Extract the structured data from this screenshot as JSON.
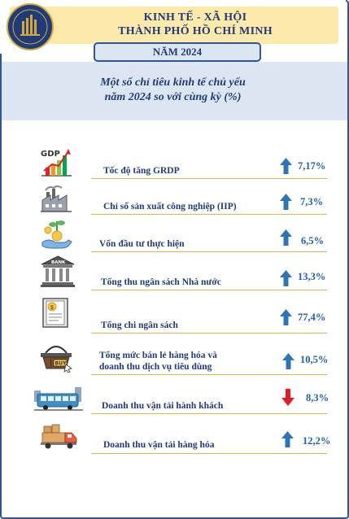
{
  "header": {
    "title_line1": "KINH TẾ - XÃ HỘI",
    "title_line2": "THÀNH PHỐ HỒ CHÍ MINH",
    "year_label": "NĂM 2024"
  },
  "subtitle": {
    "line1": "Một số chỉ tiêu kinh tế chủ yếu",
    "line2": "năm 2024 so với cùng kỳ (%)"
  },
  "icon_text": {
    "gdp": "GDP",
    "bank": "BANK",
    "buy": "BUY"
  },
  "colors": {
    "up_arrow": "#2e75b6",
    "down_arrow": "#e31e24",
    "text": "#1f3b7a",
    "value": "#1f5fb4"
  },
  "indicators": [
    {
      "label_line1": "Tốc độ tăng GRDP",
      "label_line2": "",
      "value": "7,17%",
      "direction": "up",
      "icon": "gdp-chart-icon"
    },
    {
      "label_line1": "Chỉ số sản xuất công nghiệp (IIP)",
      "label_line2": "",
      "value": "7,3%",
      "direction": "up",
      "icon": "factory-icon"
    },
    {
      "label_line1": "Vốn đầu tư thực hiện",
      "label_line2": "",
      "value": "6,5%",
      "direction": "up",
      "icon": "investment-icon"
    },
    {
      "label_line1": "Tổng thu ngân sách Nhà nước",
      "label_line2": "",
      "value": "13,3%",
      "direction": "up",
      "icon": "bank-icon"
    },
    {
      "label_line1": "Tổng chi ngân sách",
      "label_line2": "",
      "value": "77,4%",
      "direction": "up",
      "icon": "budget-document-icon"
    },
    {
      "label_line1": "Tổng mức bán lẻ hàng hóa và",
      "label_line2": "doanh thu dịch vụ tiêu dùng",
      "value": "10,5%",
      "direction": "up",
      "icon": "shopping-basket-icon"
    },
    {
      "label_line1": "Doanh thu vận tải hành khách",
      "label_line2": "",
      "value": "8,3%",
      "direction": "down",
      "icon": "bus-icon"
    },
    {
      "label_line1": "Doanh thu vận tải hàng hóa",
      "label_line2": "",
      "value": "12,2%",
      "direction": "up",
      "icon": "truck-icon"
    }
  ]
}
